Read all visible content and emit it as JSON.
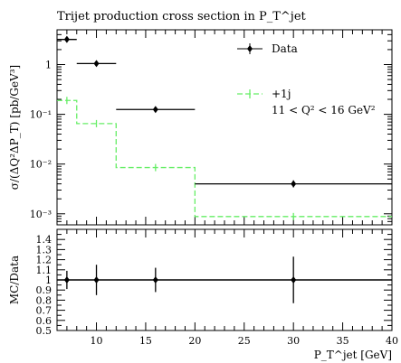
{
  "chart_data": [
    {
      "type": "line",
      "panel": "main",
      "title": "Trijet production cross section in P_T^jet",
      "ylabel": "σ/(ΔQ²ΔP_T) [pb/GeV³]",
      "yscale": "log",
      "xlim": [
        6,
        40
      ],
      "ylim": [
        0.0006,
        5
      ],
      "y_tick_labels": [
        "10⁻³",
        "10⁻²",
        "10⁻¹",
        "1"
      ],
      "series": [
        {
          "name": "Data",
          "style": "points",
          "color": "#000000",
          "points": [
            {
              "x": 7,
              "xlo": 6,
              "xhi": 8,
              "y": 3.2,
              "ylo": 2.9,
              "yhi": 3.5
            },
            {
              "x": 10,
              "xlo": 8,
              "xhi": 12,
              "y": 1.05,
              "ylo": 0.98,
              "yhi": 1.12
            },
            {
              "x": 16,
              "xlo": 12,
              "xhi": 20,
              "y": 0.125,
              "ylo": 0.116,
              "yhi": 0.134
            },
            {
              "x": 30,
              "xlo": 20,
              "xhi": 40,
              "y": 0.004,
              "ylo": 0.0034,
              "yhi": 0.0047
            }
          ]
        },
        {
          "name": "+1j",
          "style": "histogram-dashed",
          "color": "#66ee66",
          "bins": [
            {
              "xlo": 6,
              "xhi": 8,
              "y": 0.19
            },
            {
              "xlo": 8,
              "xhi": 12,
              "y": 0.065
            },
            {
              "xlo": 12,
              "xhi": 20,
              "y": 0.0085
            },
            {
              "xlo": 20,
              "xhi": 40,
              "y": 0.00088
            }
          ]
        }
      ],
      "legend": {
        "placement": "top-right",
        "data_label": "Data",
        "mc_label": "+1j",
        "cut_label": "11 < Q² < 16 GeV²"
      }
    },
    {
      "type": "line",
      "panel": "ratio",
      "ylabel": "MC/Data",
      "xlabel": "P_T^jet [GeV]",
      "xlim": [
        6,
        40
      ],
      "ylim": [
        0.5,
        1.5
      ],
      "x_ticks": [
        10,
        15,
        20,
        25,
        30,
        35,
        40
      ],
      "y_ticks": [
        0.5,
        0.6,
        0.7,
        0.8,
        0.9,
        1.0,
        1.1,
        1.2,
        1.3,
        1.4
      ],
      "y_tick_labels": [
        "0.5",
        "0.6",
        "0.7",
        "0.8",
        "0.9",
        "1",
        "1.1",
        "1.2",
        "1.3",
        "1.4"
      ],
      "points": [
        {
          "x": 7,
          "xlo": 6,
          "xhi": 8,
          "y": 1.0,
          "ylo": 0.91,
          "yhi": 1.09
        },
        {
          "x": 10,
          "xlo": 8,
          "xhi": 12,
          "y": 1.0,
          "ylo": 0.85,
          "yhi": 1.15
        },
        {
          "x": 16,
          "xlo": 12,
          "xhi": 20,
          "y": 1.0,
          "ylo": 0.88,
          "yhi": 1.12
        },
        {
          "x": 30,
          "xlo": 20,
          "xhi": 40,
          "y": 1.0,
          "ylo": 0.77,
          "yhi": 1.23
        }
      ]
    }
  ]
}
